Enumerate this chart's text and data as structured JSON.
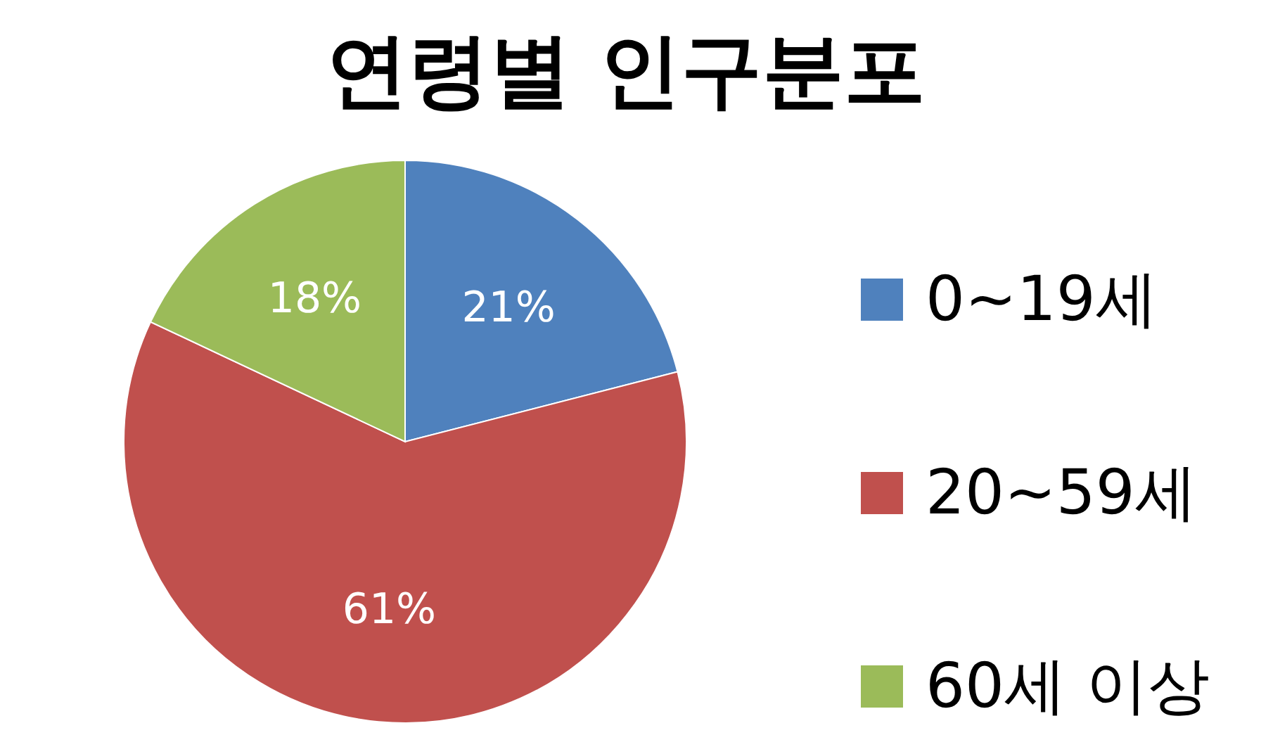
{
  "chart_data": {
    "type": "pie",
    "title": "연령별 인구분포",
    "categories": [
      "0~19세",
      "20~59세",
      "60세 이상"
    ],
    "values": [
      21,
      61,
      18
    ],
    "colors": [
      "#4f81bd",
      "#c0504d",
      "#9bbb59"
    ],
    "value_labels": [
      "21%",
      "61%",
      "18%"
    ],
    "legend": "right"
  }
}
